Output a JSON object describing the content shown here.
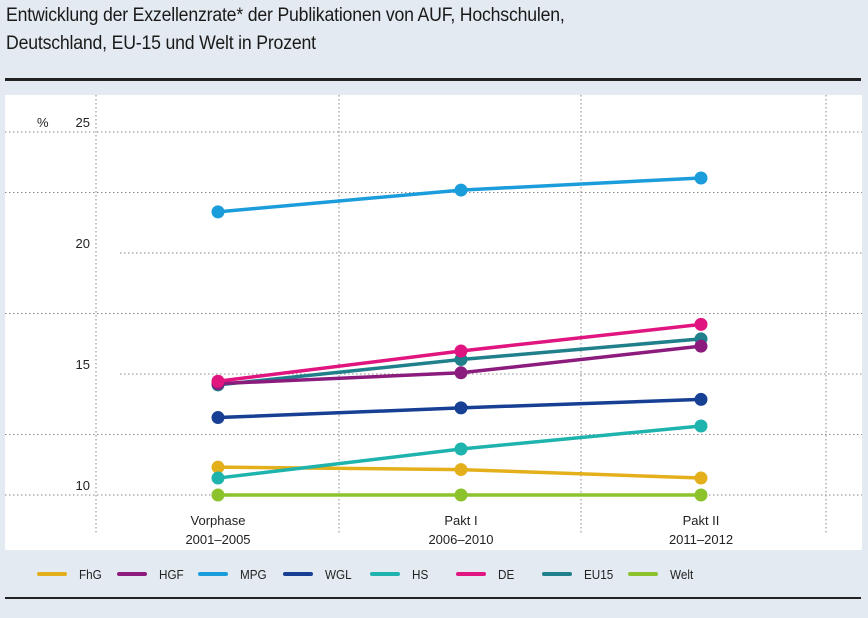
{
  "title": "Entwicklung der Exzellenzrate* der Publikationen von AUF, Hochschulen, Deutschland, EU-15 und Welt in Prozent",
  "title_lines": [
    "Entwicklung der Exzellenzrate* der Publikationen von AUF, Hochschulen,",
    "Deutschland, EU-15 und Welt in Prozent"
  ],
  "chart_data": {
    "type": "line",
    "title": "Entwicklung der Exzellenzrate* der Publikationen von AUF, Hochschulen, Deutschland, EU-15 und Welt in Prozent",
    "xlabel": "",
    "ylabel": "%",
    "ylim": [
      10,
      25
    ],
    "yticks": [
      10,
      15,
      20,
      25
    ],
    "ytick_labels": [
      "10",
      "15",
      "20",
      "25"
    ],
    "minor_gridlines": [
      12.5,
      17.5,
      22.5
    ],
    "grid": true,
    "legend_position": "bottom",
    "categories": [
      {
        "line1": "Vorphase",
        "line2": "2001–2005"
      },
      {
        "line1": "Pakt I",
        "line2": "2006–2010"
      },
      {
        "line1": "Pakt II",
        "line2": "2011–2012"
      }
    ],
    "series": [
      {
        "name": "FhG",
        "color": "#e3b01b",
        "values": [
          11.15,
          11.05,
          10.7
        ]
      },
      {
        "name": "HGF",
        "color": "#8b1c7e",
        "values": [
          14.6,
          15.05,
          16.15
        ]
      },
      {
        "name": "MPG",
        "color": "#1b9ddb",
        "values": [
          21.7,
          22.6,
          23.1
        ]
      },
      {
        "name": "WGL",
        "color": "#173f94",
        "values": [
          13.2,
          13.6,
          13.95
        ]
      },
      {
        "name": "HS",
        "color": "#1eb3ad",
        "values": [
          10.7,
          11.9,
          12.85
        ]
      },
      {
        "name": "DE",
        "color": "#e0157f",
        "values": [
          14.7,
          15.95,
          17.05
        ]
      },
      {
        "name": "EU15",
        "color": "#1f7f8a",
        "values": [
          14.55,
          15.6,
          16.45
        ]
      },
      {
        "name": "Welt",
        "color": "#8cc22c",
        "values": [
          10.0,
          10.0,
          10.0
        ]
      }
    ]
  }
}
